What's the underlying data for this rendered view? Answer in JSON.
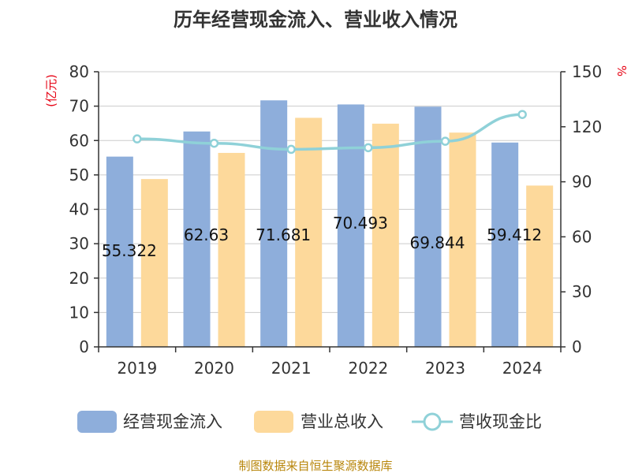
{
  "chart_data": {
    "type": "bar",
    "title": "历年经营现金流入、营业收入情况",
    "categories": [
      "2019",
      "2020",
      "2021",
      "2022",
      "2023",
      "2024"
    ],
    "y_left": {
      "unit": "(亿元)",
      "range": [
        0,
        80
      ],
      "ticks": [
        "0",
        "10",
        "20",
        "30",
        "40",
        "50",
        "60",
        "70",
        "80"
      ]
    },
    "y_right": {
      "unit": "%",
      "range": [
        0,
        150
      ],
      "ticks": [
        "0",
        "30",
        "60",
        "90",
        "120",
        "150"
      ]
    },
    "series": [
      {
        "name": "经营现金流入",
        "type": "bar",
        "axis": "left",
        "color": "#8eaedb",
        "values": [
          55.322,
          62.63,
          71.681,
          70.493,
          69.844,
          59.412
        ],
        "labels": [
          "55.322",
          "62.63",
          "71.681",
          "70.493",
          "69.844",
          "59.412"
        ]
      },
      {
        "name": "营业总收入",
        "type": "bar",
        "axis": "left",
        "color": "#fdd99b",
        "values": [
          48.8,
          56.4,
          66.6,
          64.9,
          62.3,
          46.9
        ]
      },
      {
        "name": "营收现金比",
        "type": "line",
        "axis": "right",
        "color": "#8fd1d8",
        "values": [
          113.4,
          111.0,
          107.7,
          108.6,
          112.1,
          126.7
        ]
      }
    ],
    "grid": true,
    "legend_position": "bottom"
  },
  "source": "制图数据来自恒生聚源数据库"
}
